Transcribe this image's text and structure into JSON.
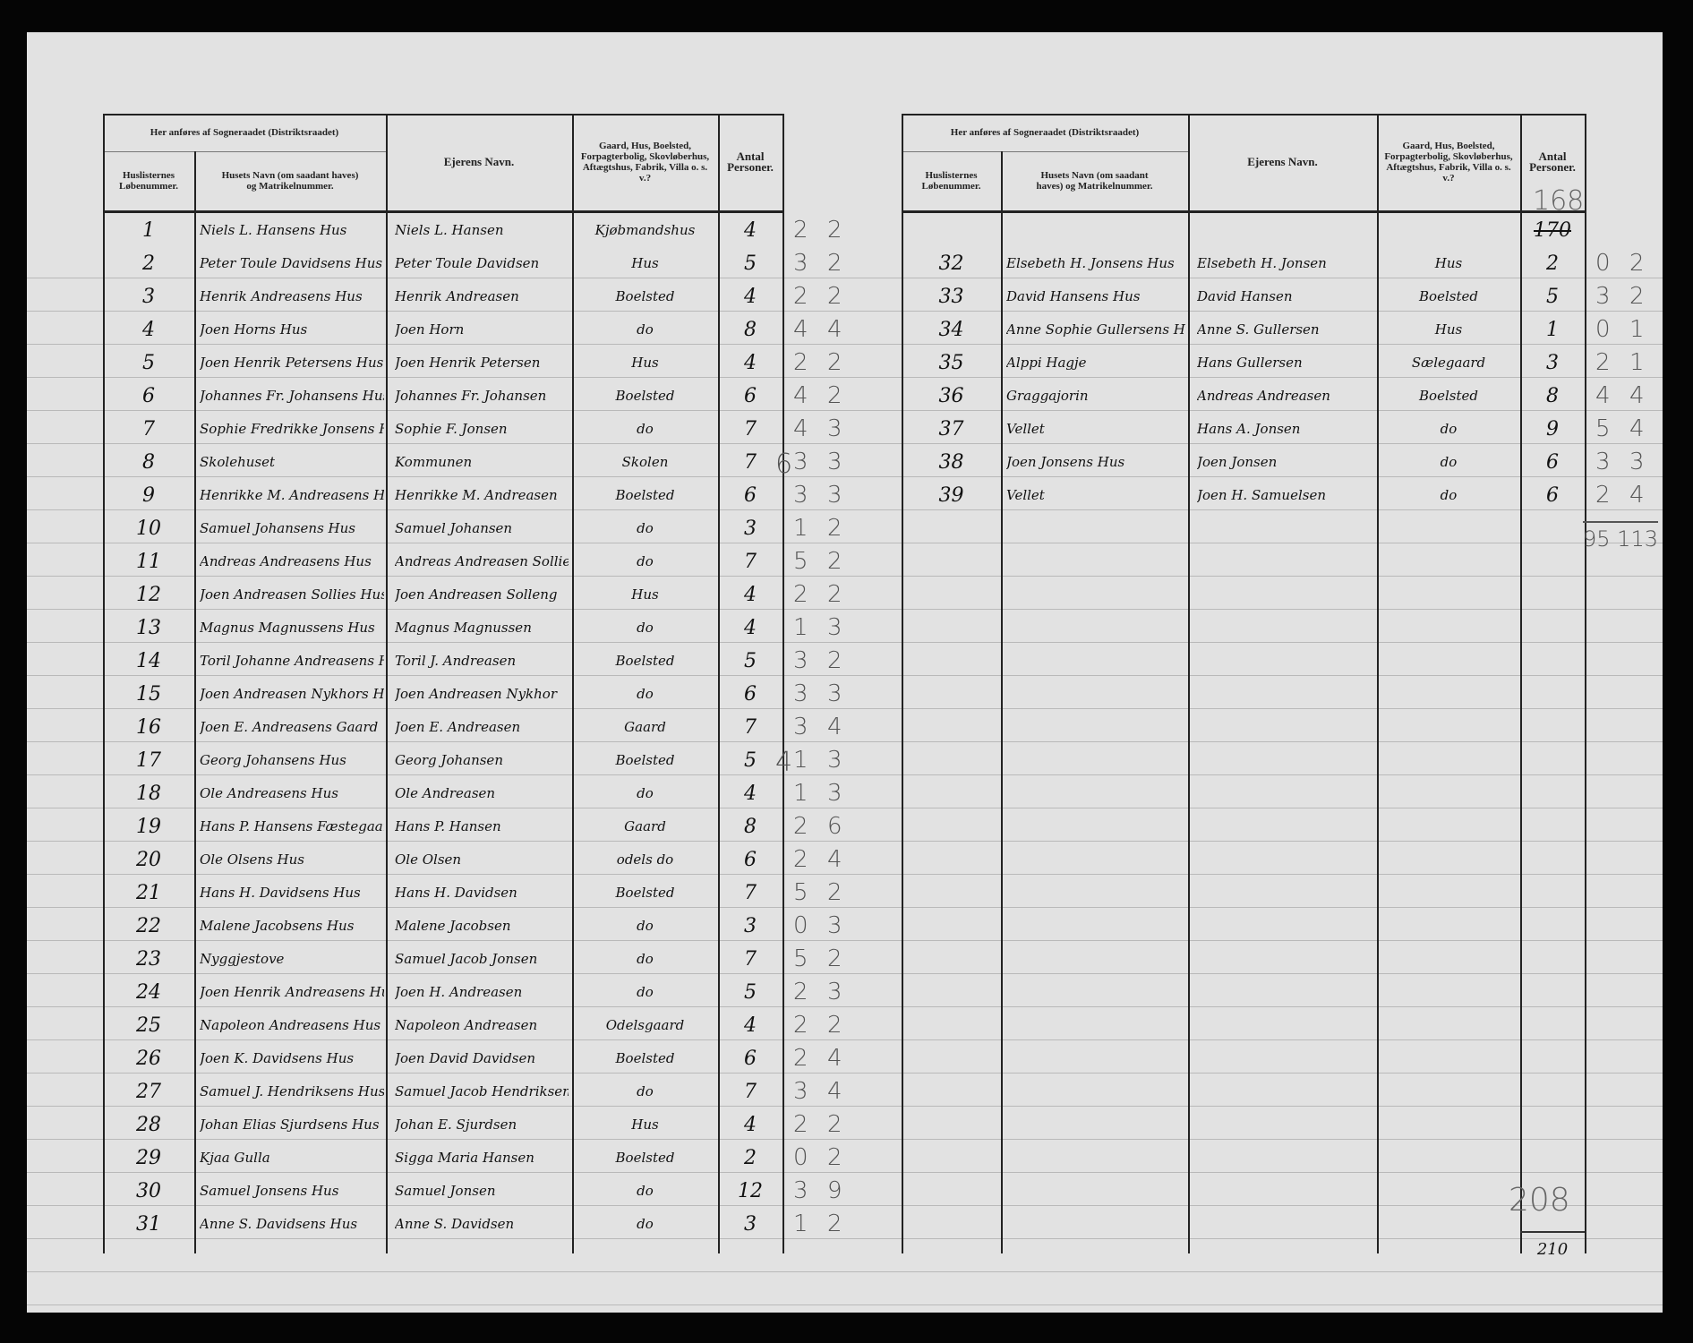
{
  "header": {
    "group_title": "Her anføres af Sogneraadet (Distriktsraadet)",
    "col_lobenummer": "Huslisternes Løbenummer.",
    "col_husets_navn": "Husets Navn (om saadant haves) og Matrikelnummer.",
    "col_ejer": "Ejerens Navn.",
    "col_type": "Gaard, Hus, Boelsted, Forpagterbolig, Skovløberhus, Aftægtshus, Fabrik, Villa o. s. v.?",
    "col_antal": "Antal Personer."
  },
  "left_rows": [
    {
      "nr": "1",
      "hus": "Niels L. Hansens Hus",
      "ejer": "Niels L. Hansen",
      "type": "Kjøbmandshus",
      "antal": "4",
      "m1": "2",
      "m2": "2"
    },
    {
      "nr": "2",
      "hus": "Peter Toule Davidsens Hus",
      "ejer": "Peter Toule Davidsen",
      "type": "Hus",
      "antal": "5",
      "m1": "3",
      "m2": "2"
    },
    {
      "nr": "3",
      "hus": "Henrik Andreasens Hus",
      "ejer": "Henrik Andreasen",
      "type": "Boelsted",
      "antal": "4",
      "m1": "2",
      "m2": "2"
    },
    {
      "nr": "4",
      "hus": "Joen Horns Hus",
      "ejer": "Joen Horn",
      "type": "do",
      "antal": "8",
      "m1": "4",
      "m2": "4"
    },
    {
      "nr": "5",
      "hus": "Joen Henrik Petersens Hus",
      "ejer": "Joen Henrik Petersen",
      "type": "Hus",
      "antal": "4",
      "m1": "2",
      "m2": "2"
    },
    {
      "nr": "6",
      "hus": "Johannes Fr. Johansens Hus",
      "ejer": "Johannes Fr. Johansen",
      "type": "Boelsted",
      "antal": "6",
      "m1": "4",
      "m2": "2"
    },
    {
      "nr": "7",
      "hus": "Sophie Fredrikke Jonsens Hus",
      "ejer": "Sophie F. Jonsen",
      "type": "do",
      "antal": "7",
      "m1": "4",
      "m2": "3"
    },
    {
      "nr": "8",
      "hus": "Skolehuset",
      "ejer": "Kommunen",
      "type": "Skolen",
      "antal": "7",
      "m1": "3",
      "m2": "3",
      "note": "6"
    },
    {
      "nr": "9",
      "hus": "Henrikke M. Andreasens Hus",
      "ejer": "Henrikke M. Andreasen",
      "type": "Boelsted",
      "antal": "6",
      "m1": "3",
      "m2": "3"
    },
    {
      "nr": "10",
      "hus": "Samuel Johansens Hus",
      "ejer": "Samuel Johansen",
      "type": "do",
      "antal": "3",
      "m1": "1",
      "m2": "2"
    },
    {
      "nr": "11",
      "hus": "Andreas Andreasens Hus",
      "ejer": "Andreas Andreasen Sollie",
      "type": "do",
      "antal": "7",
      "m1": "5",
      "m2": "2"
    },
    {
      "nr": "12",
      "hus": "Joen Andreasen Sollies Hus",
      "ejer": "Joen Andreasen Solleng",
      "type": "Hus",
      "antal": "4",
      "m1": "2",
      "m2": "2"
    },
    {
      "nr": "13",
      "hus": "Magnus Magnussens Hus",
      "ejer": "Magnus Magnussen",
      "type": "do",
      "antal": "4",
      "m1": "1",
      "m2": "3"
    },
    {
      "nr": "14",
      "hus": "Toril Johanne Andreasens Hus",
      "ejer": "Toril J. Andreasen",
      "type": "Boelsted",
      "antal": "5",
      "m1": "3",
      "m2": "2"
    },
    {
      "nr": "15",
      "hus": "Joen Andreasen Nykhors Hus",
      "ejer": "Joen Andreasen Nykhor",
      "type": "do",
      "antal": "6",
      "m1": "3",
      "m2": "3"
    },
    {
      "nr": "16",
      "hus": "Joen E. Andreasens Gaard",
      "ejer": "Joen E. Andreasen",
      "type": "Gaard",
      "antal": "7",
      "m1": "3",
      "m2": "4"
    },
    {
      "nr": "17",
      "hus": "Georg Johansens Hus",
      "ejer": "Georg Johansen",
      "type": "Boelsted",
      "antal": "5",
      "m1": "1",
      "m2": "3",
      "note": "4"
    },
    {
      "nr": "18",
      "hus": "Ole Andreasens Hus",
      "ejer": "Ole Andreasen",
      "type": "do",
      "antal": "4",
      "m1": "1",
      "m2": "3"
    },
    {
      "nr": "19",
      "hus": "Hans P. Hansens Fæstegaard",
      "ejer": "Hans P. Hansen",
      "type": "Gaard",
      "antal": "8",
      "m1": "2",
      "m2": "6"
    },
    {
      "nr": "20",
      "hus": "Ole Olsens Hus",
      "ejer": "Ole Olsen",
      "type": "odels do",
      "antal": "6",
      "m1": "2",
      "m2": "4"
    },
    {
      "nr": "21",
      "hus": "Hans H. Davidsens Hus",
      "ejer": "Hans H. Davidsen",
      "type": "Boelsted",
      "antal": "7",
      "m1": "5",
      "m2": "2"
    },
    {
      "nr": "22",
      "hus": "Malene Jacobsens Hus",
      "ejer": "Malene Jacobsen",
      "type": "do",
      "antal": "3",
      "m1": "0",
      "m2": "3"
    },
    {
      "nr": "23",
      "hus": "Nyggjestove",
      "ejer": "Samuel Jacob Jonsen",
      "type": "do",
      "antal": "7",
      "m1": "5",
      "m2": "2"
    },
    {
      "nr": "24",
      "hus": "Joen Henrik Andreasens Hus",
      "ejer": "Joen H. Andreasen",
      "type": "do",
      "antal": "5",
      "m1": "2",
      "m2": "3"
    },
    {
      "nr": "25",
      "hus": "Napoleon Andreasens Hus",
      "ejer": "Napoleon Andreasen",
      "type": "Odelsgaard",
      "antal": "4",
      "m1": "2",
      "m2": "2"
    },
    {
      "nr": "26",
      "hus": "Joen K. Davidsens Hus",
      "ejer": "Joen David Davidsen",
      "type": "Boelsted",
      "antal": "6",
      "m1": "2",
      "m2": "4"
    },
    {
      "nr": "27",
      "hus": "Samuel J. Hendriksens Hus",
      "ejer": "Samuel Jacob Hendriksen",
      "type": "do",
      "antal": "7",
      "m1": "3",
      "m2": "4"
    },
    {
      "nr": "28",
      "hus": "Johan Elias Sjurdsens Hus",
      "ejer": "Johan E. Sjurdsen",
      "type": "Hus",
      "antal": "4",
      "m1": "2",
      "m2": "2"
    },
    {
      "nr": "29",
      "hus": "Kjaa Gulla",
      "ejer": "Sigga Maria Hansen",
      "type": "Boelsted",
      "antal": "2",
      "m1": "0",
      "m2": "2"
    },
    {
      "nr": "30",
      "hus": "Samuel Jonsens Hus",
      "ejer": "Samuel Jonsen",
      "type": "do",
      "antal": "12",
      "m1": "3",
      "m2": "9"
    },
    {
      "nr": "31",
      "hus": "Anne S. Davidsens Hus",
      "ejer": "Anne S. Davidsen",
      "type": "do",
      "antal": "3",
      "m1": "1",
      "m2": "2"
    }
  ],
  "right_carry": {
    "above": "168",
    "value": "170"
  },
  "right_rows": [
    {
      "nr": "32",
      "hus": "Elsebeth H. Jonsens Hus",
      "ejer": "Elsebeth H. Jonsen",
      "type": "Hus",
      "antal": "2",
      "m1": "0",
      "m2": "2"
    },
    {
      "nr": "33",
      "hus": "David Hansens Hus",
      "ejer": "David Hansen",
      "type": "Boelsted",
      "antal": "5",
      "m1": "3",
      "m2": "2"
    },
    {
      "nr": "34",
      "hus": "Anne Sophie Gullersens Hus",
      "ejer": "Anne S. Gullersen",
      "type": "Hus",
      "antal": "1",
      "m1": "0",
      "m2": "1"
    },
    {
      "nr": "35",
      "hus": "Alppi Hagje",
      "ejer": "Hans Gullersen",
      "type": "Sælegaard",
      "antal": "3",
      "m1": "2",
      "m2": "1"
    },
    {
      "nr": "36",
      "hus": "Graggajorin",
      "ejer": "Andreas Andreasen",
      "type": "Boelsted",
      "antal": "8",
      "m1": "4",
      "m2": "4"
    },
    {
      "nr": "37",
      "hus": "Vellet",
      "ejer": "Hans A. Jonsen",
      "type": "do",
      "antal": "9",
      "m1": "5",
      "m2": "4"
    },
    {
      "nr": "38",
      "hus": "Joen Jonsens Hus",
      "ejer": "Joen Jonsen",
      "type": "do",
      "antal": "6",
      "m1": "3",
      "m2": "3"
    },
    {
      "nr": "39",
      "hus": "Vellet",
      "ejer": "Joen H. Samuelsen",
      "type": "do",
      "antal": "6",
      "m1": "2",
      "m2": "4"
    }
  ],
  "margin_total": "95 113",
  "bottom_total": {
    "crossed": "208",
    "value": "210"
  }
}
